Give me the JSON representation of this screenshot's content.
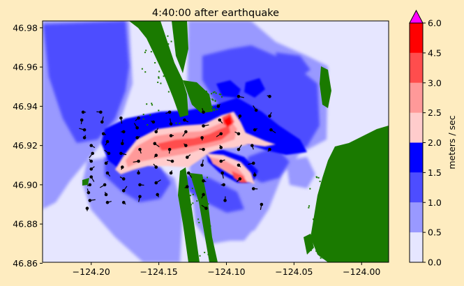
{
  "chart_data": {
    "type": "heatmap",
    "title": "4:40:00 after earthquake",
    "xlabel": "",
    "ylabel": "",
    "xlim": [
      -124.236,
      -123.98
    ],
    "ylim": [
      46.8605,
      46.9835
    ],
    "xticks": [
      -124.2,
      -124.15,
      -124.1,
      -124.05,
      -124.0
    ],
    "xtick_labels": [
      "−124.20",
      "−124.15",
      "−124.10",
      "−124.05",
      "−124.00"
    ],
    "yticks": [
      46.86,
      46.88,
      46.9,
      46.92,
      46.94,
      46.96,
      46.98
    ],
    "ytick_labels": [
      "46.86",
      "46.88",
      "46.90",
      "46.92",
      "46.94",
      "46.96",
      "46.98"
    ],
    "colorbar": {
      "label": "meters / sec",
      "levels": [
        0.0,
        0.5,
        1.0,
        1.5,
        2.0,
        2.5,
        3.0,
        4.5,
        6.0
      ],
      "tick_labels": [
        "0.0",
        "0.5",
        "1.0",
        "1.5",
        "2.0",
        "2.5",
        "3.0",
        "4.5",
        "6.0"
      ],
      "colors": [
        "#e6e6ff",
        "#9999ff",
        "#4d4dff",
        "#0000ff",
        "#ffcccc",
        "#ff9999",
        "#ff4d4d",
        "#ff0000"
      ],
      "extend_color": "#ff00ff"
    },
    "land_color": "#1a7a00",
    "gauges": [
      [
        -124.206,
        46.937
      ],
      [
        -124.207,
        46.933
      ],
      [
        -124.205,
        46.928
      ],
      [
        -124.205,
        46.924
      ],
      [
        -124.2,
        46.92
      ],
      [
        -124.199,
        46.916
      ],
      [
        -124.2,
        46.912
      ],
      [
        -124.2,
        46.908
      ],
      [
        -124.2,
        46.904
      ],
      [
        -124.201,
        46.9
      ],
      [
        -124.202,
        46.896
      ],
      [
        -124.201,
        46.892
      ],
      [
        -124.203,
        46.888
      ],
      [
        -124.193,
        46.937
      ],
      [
        -124.192,
        46.932
      ],
      [
        -124.191,
        46.926
      ],
      [
        -124.188,
        46.922
      ],
      [
        -124.187,
        46.916
      ],
      [
        -124.189,
        46.911
      ],
      [
        -124.188,
        46.906
      ],
      [
        -124.19,
        46.9
      ],
      [
        -124.189,
        46.895
      ],
      [
        -124.188,
        46.891
      ],
      [
        -124.178,
        46.934
      ],
      [
        -124.176,
        46.927
      ],
      [
        -124.177,
        46.921
      ],
      [
        -124.178,
        46.916
      ],
      [
        -124.177,
        46.909
      ],
      [
        -124.176,
        46.903
      ],
      [
        -124.176,
        46.897
      ],
      [
        -124.176,
        46.891
      ],
      [
        -124.165,
        46.934
      ],
      [
        -124.166,
        46.929
      ],
      [
        -124.166,
        46.924
      ],
      [
        -124.164,
        46.918
      ],
      [
        -124.165,
        46.912
      ],
      [
        -124.165,
        46.906
      ],
      [
        -124.164,
        46.9
      ],
      [
        -124.164,
        46.894
      ],
      [
        -124.154,
        46.932
      ],
      [
        -124.152,
        46.927
      ],
      [
        -124.153,
        46.921
      ],
      [
        -124.152,
        46.915
      ],
      [
        -124.152,
        46.909
      ],
      [
        -124.152,
        46.901
      ],
      [
        -124.151,
        46.895
      ],
      [
        -124.142,
        46.937
      ],
      [
        -124.141,
        46.931
      ],
      [
        -124.141,
        46.925
      ],
      [
        -124.142,
        46.918
      ],
      [
        -124.14,
        46.912
      ],
      [
        -124.141,
        46.906
      ],
      [
        -124.131,
        46.933
      ],
      [
        -124.13,
        46.927
      ],
      [
        -124.13,
        46.92
      ],
      [
        -124.129,
        46.914
      ],
      [
        -124.128,
        46.906
      ],
      [
        -124.129,
        46.899
      ],
      [
        -124.117,
        46.937
      ],
      [
        -124.117,
        46.93
      ],
      [
        -124.118,
        46.924
      ],
      [
        -124.117,
        46.918
      ],
      [
        -124.118,
        46.91
      ],
      [
        -124.117,
        46.902
      ],
      [
        -124.117,
        46.895
      ],
      [
        -124.115,
        46.888
      ],
      [
        -124.106,
        46.94
      ],
      [
        -124.105,
        46.933
      ],
      [
        -124.104,
        46.926
      ],
      [
        -124.104,
        46.919
      ],
      [
        -124.104,
        46.912
      ],
      [
        -124.103,
        46.906
      ],
      [
        -124.102,
        46.9
      ],
      [
        -124.101,
        46.892
      ],
      [
        -124.091,
        46.945
      ],
      [
        -124.09,
        46.935
      ],
      [
        -124.091,
        46.926
      ],
      [
        -124.091,
        46.918
      ],
      [
        -124.091,
        46.91
      ],
      [
        -124.09,
        46.903
      ],
      [
        -124.078,
        46.938
      ],
      [
        -124.079,
        46.928
      ],
      [
        -124.081,
        46.92
      ],
      [
        -124.08,
        46.911
      ],
      [
        -124.079,
        46.905
      ],
      [
        -124.08,
        46.898
      ],
      [
        -124.074,
        46.89
      ],
      [
        -124.068,
        46.945
      ],
      [
        -124.068,
        46.935
      ],
      [
        -124.067,
        46.928
      ],
      [
        -124.068,
        46.918
      ]
    ]
  }
}
